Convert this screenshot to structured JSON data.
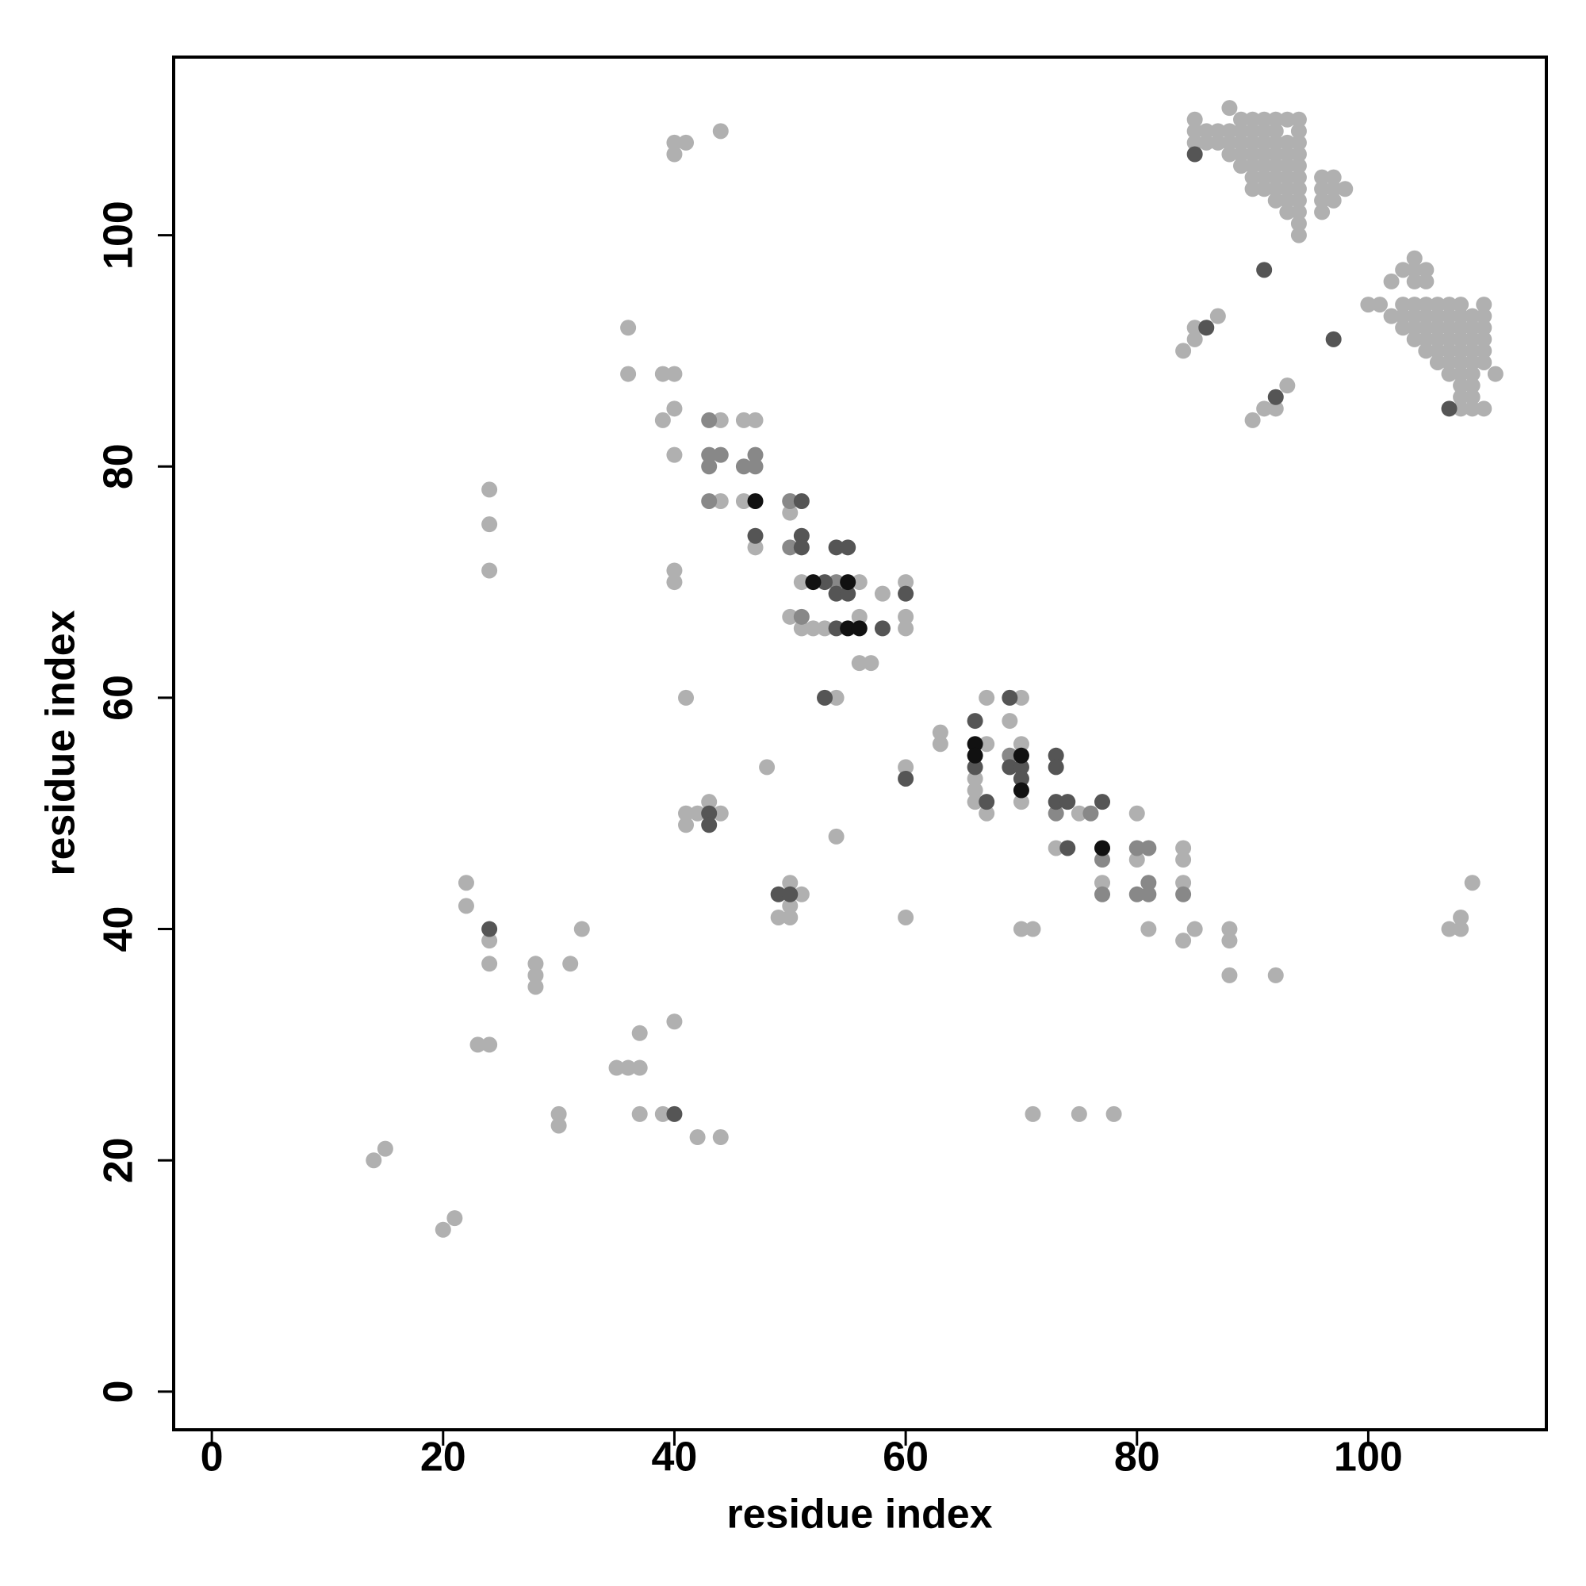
{
  "chart_data": {
    "type": "scatter",
    "x_label": "residue index",
    "y_label": "residue index",
    "xlim": [
      -3.3,
      115.4
    ],
    "ylim": [
      -3.3,
      115.4
    ],
    "xticks": [
      0,
      20,
      40,
      60,
      80,
      100
    ],
    "yticks": [
      0,
      20,
      40,
      60,
      80,
      100
    ],
    "grid": false,
    "series": [
      {
        "color": "#b0b0b0",
        "x": [
          14,
          15,
          20,
          21,
          22,
          22,
          24,
          24,
          24,
          24,
          24,
          23,
          24,
          28,
          28,
          28,
          30,
          30,
          31,
          32,
          35,
          36,
          37,
          37,
          37,
          39,
          40,
          42,
          44,
          36,
          36,
          39,
          40,
          39,
          40,
          40,
          40,
          40,
          40,
          41,
          40,
          44,
          41,
          41,
          41,
          42,
          43,
          44,
          44,
          44,
          46,
          47,
          46,
          47,
          48,
          49,
          50,
          50,
          50,
          50,
          50,
          50,
          51,
          51,
          51,
          52,
          53,
          54,
          54,
          56,
          56,
          56,
          57,
          58,
          60,
          60,
          60,
          60,
          60,
          63,
          63,
          66,
          66,
          66,
          67,
          67,
          67,
          69,
          70,
          70,
          70,
          70,
          71,
          71,
          73,
          75,
          75,
          77,
          78,
          80,
          80,
          81,
          84,
          84,
          84,
          84,
          85,
          88,
          88,
          88,
          92,
          84,
          85,
          85,
          87,
          90,
          91,
          92,
          93,
          107,
          108,
          108,
          109,
          88,
          85,
          89,
          90,
          91,
          92,
          93,
          94,
          85,
          86,
          87,
          88,
          89,
          90,
          91,
          92,
          94,
          85,
          86,
          87,
          88,
          89,
          90,
          91,
          92,
          93,
          94,
          88,
          89,
          90,
          91,
          92,
          93,
          94,
          89,
          90,
          91,
          92,
          93,
          94,
          90,
          91,
          92,
          93,
          94,
          96,
          97,
          90,
          91,
          92,
          93,
          94,
          96,
          97,
          98,
          92,
          93,
          94,
          96,
          97,
          93,
          94,
          96,
          94,
          94,
          104,
          103,
          104,
          105,
          102,
          104,
          105,
          100,
          101,
          103,
          104,
          105,
          106,
          107,
          108,
          110,
          102,
          103,
          104,
          105,
          106,
          107,
          108,
          109,
          110,
          103,
          104,
          105,
          106,
          107,
          108,
          109,
          110,
          104,
          105,
          106,
          107,
          108,
          109,
          110,
          105,
          106,
          107,
          108,
          109,
          110,
          106,
          107,
          108,
          109,
          110,
          107,
          108,
          109,
          111,
          108,
          109,
          108,
          109,
          108,
          109,
          110
        ],
        "values": [
          20,
          21,
          14,
          15,
          44,
          42,
          78,
          75,
          71,
          39,
          37,
          30,
          30,
          37,
          36,
          35,
          24,
          23,
          37,
          40,
          28,
          28,
          28,
          31,
          24,
          24,
          32,
          22,
          22,
          92,
          88,
          88,
          88,
          84,
          85,
          81,
          71,
          70,
          108,
          108,
          107,
          109,
          60,
          50,
          49,
          50,
          51,
          50,
          84,
          77,
          84,
          84,
          77,
          73,
          54,
          41,
          44,
          42,
          41,
          77,
          76,
          67,
          43,
          70,
          66,
          66,
          66,
          60,
          48,
          70,
          67,
          63,
          63,
          69,
          70,
          67,
          66,
          54,
          41,
          57,
          56,
          53,
          52,
          51,
          60,
          56,
          50,
          58,
          60,
          56,
          51,
          40,
          40,
          24,
          47,
          50,
          24,
          44,
          24,
          50,
          46,
          40,
          47,
          46,
          44,
          39,
          40,
          40,
          39,
          36,
          36,
          90,
          91,
          92,
          93,
          84,
          85,
          85,
          87,
          40,
          41,
          40,
          44,
          111,
          110,
          110,
          110,
          110,
          110,
          110,
          110,
          109,
          109,
          109,
          109,
          109,
          109,
          109,
          109,
          109,
          108,
          108,
          108,
          108,
          108,
          108,
          108,
          108,
          108,
          108,
          107,
          107,
          107,
          107,
          107,
          107,
          107,
          106,
          106,
          106,
          106,
          106,
          106,
          105,
          105,
          105,
          105,
          105,
          105,
          105,
          104,
          104,
          104,
          104,
          104,
          104,
          104,
          104,
          103,
          103,
          103,
          103,
          103,
          102,
          102,
          102,
          101,
          100,
          98,
          97,
          97,
          97,
          96,
          96,
          96,
          94,
          94,
          94,
          94,
          94,
          94,
          94,
          94,
          94,
          93,
          93,
          93,
          93,
          93,
          93,
          93,
          93,
          93,
          92,
          92,
          92,
          92,
          92,
          92,
          92,
          92,
          91,
          91,
          91,
          91,
          91,
          91,
          91,
          90,
          90,
          90,
          90,
          90,
          90,
          89,
          89,
          89,
          89,
          89,
          88,
          88,
          88,
          88,
          87,
          87,
          86,
          86,
          85,
          85,
          85
        ]
      },
      {
        "color": "#888888",
        "x": [
          43,
          43,
          44,
          43,
          46,
          47,
          47,
          43,
          50,
          50,
          51,
          54,
          69,
          80,
          81,
          80,
          81,
          81,
          84,
          77,
          77,
          73,
          76
        ],
        "values": [
          84,
          81,
          81,
          80,
          80,
          80,
          81,
          77,
          77,
          73,
          67,
          70,
          55,
          47,
          47,
          43,
          44,
          43,
          43,
          46,
          43,
          50,
          50
        ]
      },
      {
        "color": "#555555",
        "x": [
          24,
          40,
          43,
          43,
          47,
          51,
          51,
          51,
          54,
          55,
          53,
          54,
          55,
          53,
          58,
          54,
          60,
          60,
          66,
          66,
          67,
          69,
          69,
          70,
          70,
          73,
          73,
          73,
          74,
          74,
          77,
          49,
          50,
          85,
          86,
          91,
          92,
          97,
          107
        ],
        "values": [
          40,
          24,
          50,
          49,
          74,
          74,
          73,
          77,
          73,
          73,
          70,
          69,
          69,
          60,
          66,
          66,
          69,
          53,
          58,
          54,
          51,
          60,
          54,
          54,
          53,
          55,
          54,
          51,
          51,
          47,
          51,
          43,
          43,
          107,
          92,
          97,
          86,
          91,
          85
        ]
      },
      {
        "color": "#111111",
        "x": [
          47,
          52,
          55,
          55,
          56,
          66,
          66,
          70,
          70,
          77
        ],
        "values": [
          77,
          70,
          70,
          66,
          66,
          56,
          55,
          55,
          52,
          47
        ]
      }
    ]
  }
}
